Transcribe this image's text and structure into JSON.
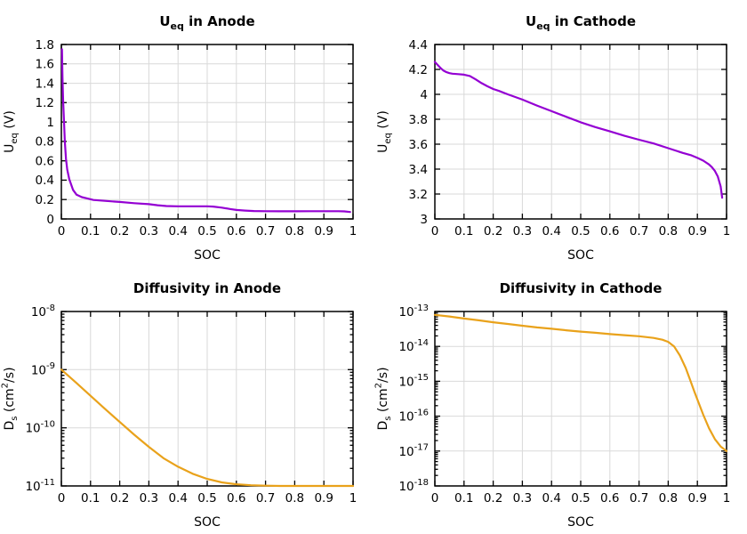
{
  "figure": {
    "background": "#ffffff",
    "grid_color": "#d9d9d9",
    "axis_color": "#000000"
  },
  "chart_data": [
    {
      "id": "ueq-anode",
      "type": "line",
      "title_parts": [
        {
          "t": "U"
        },
        {
          "sub": "eq"
        },
        {
          "t": " in Anode"
        }
      ],
      "xlabel": "SOC",
      "ylabel_parts": [
        {
          "t": "U"
        },
        {
          "sub": "eq"
        },
        {
          "t": " (V)"
        }
      ],
      "line_color": "#9400d3",
      "grid": true,
      "legend": "none",
      "x_range": [
        0,
        1
      ],
      "x_ticks": [
        0,
        0.1,
        0.2,
        0.3,
        0.4,
        0.5,
        0.6,
        0.7,
        0.8,
        0.9,
        1
      ],
      "x_tick_labels": [
        "0",
        "0.1",
        "0.2",
        "0.3",
        "0.4",
        "0.5",
        "0.6",
        "0.7",
        "0.8",
        "0.9",
        "1"
      ],
      "y_scale": "linear",
      "y_range": [
        0,
        1.8
      ],
      "y_ticks": [
        0,
        0.2,
        0.4,
        0.6,
        0.8,
        1,
        1.2,
        1.4,
        1.6,
        1.8
      ],
      "y_tick_labels": [
        "0",
        "0.2",
        "0.4",
        "0.6",
        "0.8",
        "1",
        "1.2",
        "1.4",
        "1.6",
        "1.8"
      ],
      "x": [
        0.002,
        0.004,
        0.006,
        0.009,
        0.012,
        0.016,
        0.02,
        0.027,
        0.04,
        0.052,
        0.07,
        0.09,
        0.11,
        0.15,
        0.2,
        0.25,
        0.3,
        0.33,
        0.36,
        0.4,
        0.45,
        0.5,
        0.52,
        0.55,
        0.58,
        0.6,
        0.63,
        0.66,
        0.7,
        0.75,
        0.8,
        0.85,
        0.9,
        0.95,
        0.97,
        0.99
      ],
      "y": [
        1.75,
        1.45,
        1.22,
        1.0,
        0.8,
        0.62,
        0.51,
        0.41,
        0.3,
        0.25,
        0.225,
        0.21,
        0.196,
        0.186,
        0.175,
        0.163,
        0.152,
        0.141,
        0.133,
        0.13,
        0.13,
        0.13,
        0.128,
        0.117,
        0.102,
        0.093,
        0.086,
        0.082,
        0.08,
        0.079,
        0.079,
        0.08,
        0.08,
        0.08,
        0.078,
        0.072
      ]
    },
    {
      "id": "ueq-cathode",
      "type": "line",
      "title_parts": [
        {
          "t": "U"
        },
        {
          "sub": "eq"
        },
        {
          "t": " in Cathode"
        }
      ],
      "xlabel": "SOC",
      "ylabel_parts": [
        {
          "t": "U"
        },
        {
          "sub": "eq"
        },
        {
          "t": " (V)"
        }
      ],
      "line_color": "#9400d3",
      "grid": true,
      "legend": "none",
      "x_range": [
        0,
        1
      ],
      "x_ticks": [
        0,
        0.1,
        0.2,
        0.3,
        0.4,
        0.5,
        0.6,
        0.7,
        0.8,
        0.9,
        1
      ],
      "x_tick_labels": [
        "0",
        "0.1",
        "0.2",
        "0.3",
        "0.4",
        "0.5",
        "0.6",
        "0.7",
        "0.8",
        "0.9",
        "1"
      ],
      "y_scale": "linear",
      "y_range": [
        3,
        4.4
      ],
      "y_ticks": [
        3,
        3.2,
        3.4,
        3.6,
        3.8,
        4,
        4.2,
        4.4
      ],
      "y_tick_labels": [
        "3",
        "3.2",
        "3.4",
        "3.6",
        "3.8",
        "4",
        "4.2",
        "4.4"
      ],
      "x": [
        0,
        0.01,
        0.02,
        0.03,
        0.04,
        0.05,
        0.06,
        0.08,
        0.1,
        0.12,
        0.14,
        0.16,
        0.18,
        0.2,
        0.22,
        0.25,
        0.28,
        0.3,
        0.35,
        0.4,
        0.45,
        0.5,
        0.55,
        0.6,
        0.65,
        0.7,
        0.75,
        0.8,
        0.85,
        0.88,
        0.9,
        0.92,
        0.94,
        0.95,
        0.96,
        0.97,
        0.98,
        0.985
      ],
      "y": [
        4.26,
        4.235,
        4.21,
        4.19,
        4.178,
        4.17,
        4.166,
        4.162,
        4.158,
        4.147,
        4.12,
        4.09,
        4.065,
        4.043,
        4.027,
        4.0,
        3.975,
        3.958,
        3.91,
        3.865,
        3.82,
        3.776,
        3.737,
        3.703,
        3.667,
        3.636,
        3.606,
        3.568,
        3.53,
        3.51,
        3.49,
        3.468,
        3.437,
        3.415,
        3.385,
        3.34,
        3.26,
        3.17
      ]
    },
    {
      "id": "diffusivity-anode",
      "type": "line",
      "title_parts": [
        {
          "t": "Diffusivity in Anode"
        }
      ],
      "xlabel": "SOC",
      "ylabel_parts": [
        {
          "t": "D"
        },
        {
          "sub": "s"
        },
        {
          "t": " (cm"
        },
        {
          "sup": "2"
        },
        {
          "t": "/s)"
        }
      ],
      "line_color": "#e9a21b",
      "grid": true,
      "legend": "none",
      "x_range": [
        0,
        1
      ],
      "x_ticks": [
        0,
        0.1,
        0.2,
        0.3,
        0.4,
        0.5,
        0.6,
        0.7,
        0.8,
        0.9,
        1
      ],
      "x_tick_labels": [
        "0",
        "0.1",
        "0.2",
        "0.3",
        "0.4",
        "0.5",
        "0.6",
        "0.7",
        "0.8",
        "0.9",
        "1"
      ],
      "y_scale": "log",
      "y_range": [
        1e-11,
        1e-08
      ],
      "y_tick_exponents": [
        -11,
        -10,
        -9,
        -8
      ],
      "x": [
        0,
        0.05,
        0.1,
        0.15,
        0.2,
        0.25,
        0.3,
        0.35,
        0.4,
        0.45,
        0.5,
        0.55,
        0.6,
        0.65,
        0.7,
        0.75,
        0.8,
        0.9,
        1.0
      ],
      "y": [
        1e-09,
        6e-10,
        3.55e-10,
        2.1e-10,
        1.26e-10,
        7.6e-11,
        4.7e-11,
        3e-11,
        2.14e-11,
        1.62e-11,
        1.32e-11,
        1.15e-11,
        1.07e-11,
        1.03e-11,
        1.01e-11,
        1e-11,
        1e-11,
        1e-11,
        1e-11
      ]
    },
    {
      "id": "diffusivity-cathode",
      "type": "line",
      "title_parts": [
        {
          "t": "Diffusivity in Cathode"
        }
      ],
      "xlabel": "SOC",
      "ylabel_parts": [
        {
          "t": "D"
        },
        {
          "sub": "s"
        },
        {
          "t": " (cm"
        },
        {
          "sup": "2"
        },
        {
          "t": "/s)"
        }
      ],
      "line_color": "#e9a21b",
      "grid": true,
      "legend": "none",
      "x_range": [
        0,
        1
      ],
      "x_ticks": [
        0,
        0.1,
        0.2,
        0.3,
        0.4,
        0.5,
        0.6,
        0.7,
        0.8,
        0.9,
        1
      ],
      "x_tick_labels": [
        "0",
        "0.1",
        "0.2",
        "0.3",
        "0.4",
        "0.5",
        "0.6",
        "0.7",
        "0.8",
        "0.9",
        "1"
      ],
      "y_scale": "log",
      "y_range": [
        1e-18,
        1e-13
      ],
      "y_tick_exponents": [
        -18,
        -17,
        -16,
        -15,
        -14,
        -13
      ],
      "x": [
        0,
        0.05,
        0.1,
        0.15,
        0.2,
        0.25,
        0.3,
        0.35,
        0.4,
        0.45,
        0.5,
        0.55,
        0.6,
        0.65,
        0.7,
        0.75,
        0.78,
        0.8,
        0.82,
        0.84,
        0.86,
        0.875,
        0.89,
        0.9,
        0.92,
        0.94,
        0.96,
        0.98,
        1.0
      ],
      "y": [
        8e-14,
        7.2e-14,
        6.3e-14,
        5.6e-14,
        4.9e-14,
        4.4e-14,
        3.9e-14,
        3.5e-14,
        3.2e-14,
        2.9e-14,
        2.65e-14,
        2.45e-14,
        2.25e-14,
        2.1e-14,
        1.95e-14,
        1.75e-14,
        1.55e-14,
        1.35e-14,
        1e-14,
        5.5e-15,
        2.4e-15,
        1.1e-15,
        5e-16,
        3e-16,
        1.1e-16,
        4.5e-17,
        2.2e-17,
        1.35e-17,
        1e-17
      ]
    }
  ]
}
